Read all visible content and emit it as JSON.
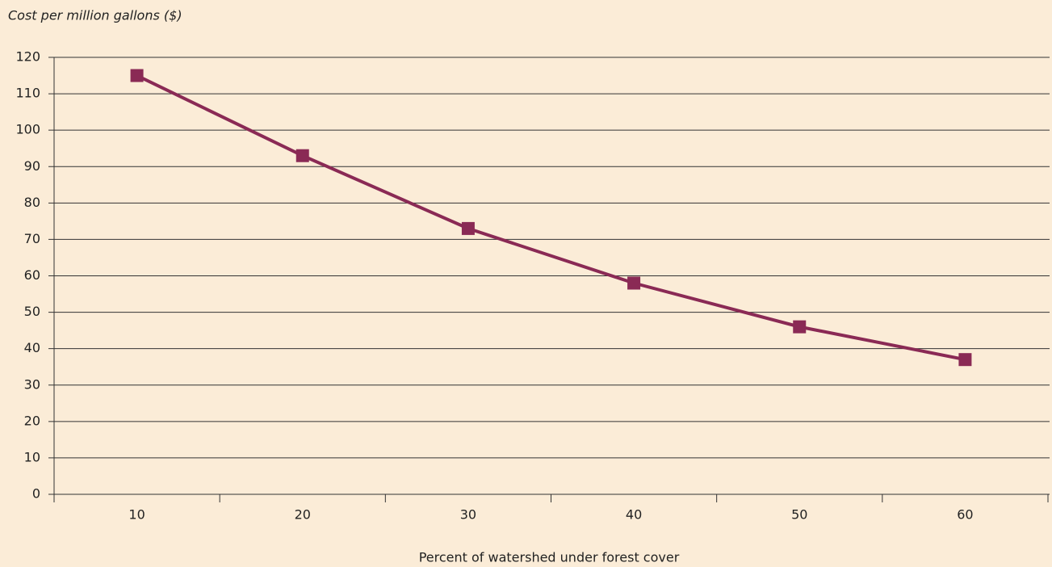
{
  "chart_data": {
    "type": "line",
    "title": "Cost per million gallons ($)",
    "x_label": "Percent of watershed under forest cover",
    "categories": [
      "10",
      "20",
      "30",
      "40",
      "50",
      "60"
    ],
    "series": [
      {
        "name": "Cost",
        "color": "#8a2a55",
        "values": [
          115,
          93,
          73,
          58,
          46,
          37
        ]
      }
    ],
    "ylim": [
      0,
      120
    ],
    "yticks": [
      0,
      10,
      20,
      30,
      40,
      50,
      60,
      70,
      80,
      90,
      100,
      110,
      120
    ],
    "grid": true
  }
}
